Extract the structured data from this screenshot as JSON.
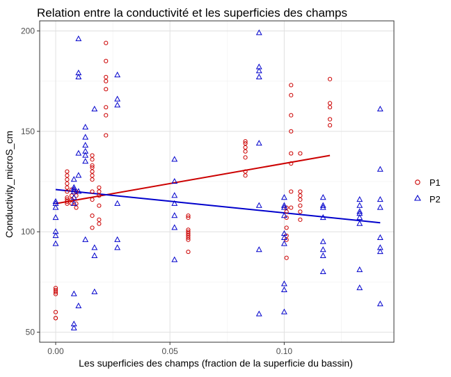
{
  "chart_data": {
    "type": "scatter",
    "title": "Relation entre la conductivité et les superficies des champs",
    "xlabel": "Les superficies des champs (fraction de la superficie du bassin)",
    "ylabel": "Conductivity_microS_cm",
    "xlim": [
      -0.007,
      0.148
    ],
    "ylim": [
      45,
      205
    ],
    "x_ticks": [
      0.0,
      0.05,
      0.1
    ],
    "x_tick_labels": [
      "0.00",
      "0.05",
      "0.10"
    ],
    "y_ticks": [
      50,
      100,
      150,
      200
    ],
    "y_tick_labels": [
      "50",
      "100",
      "150",
      "200"
    ],
    "grid": true,
    "legend_position": "right",
    "series": [
      {
        "name": "P1",
        "marker": "circle",
        "color": "#cc0000",
        "points": [
          [
            0.0,
            57
          ],
          [
            0.0,
            60
          ],
          [
            0.0,
            57
          ],
          [
            0.0,
            69
          ],
          [
            0.0,
            70
          ],
          [
            0.0,
            71
          ],
          [
            0.0,
            72
          ],
          [
            0.005,
            114
          ],
          [
            0.005,
            115
          ],
          [
            0.005,
            116
          ],
          [
            0.005,
            117
          ],
          [
            0.005,
            120
          ],
          [
            0.005,
            122
          ],
          [
            0.005,
            124
          ],
          [
            0.005,
            126
          ],
          [
            0.005,
            128
          ],
          [
            0.005,
            130
          ],
          [
            0.007,
            114
          ],
          [
            0.007,
            116
          ],
          [
            0.007,
            118
          ],
          [
            0.007,
            121
          ],
          [
            0.009,
            112
          ],
          [
            0.009,
            114
          ],
          [
            0.009,
            118
          ],
          [
            0.009,
            120
          ],
          [
            0.016,
            102
          ],
          [
            0.016,
            108
          ],
          [
            0.016,
            116
          ],
          [
            0.016,
            120
          ],
          [
            0.016,
            126
          ],
          [
            0.016,
            128
          ],
          [
            0.016,
            130
          ],
          [
            0.016,
            132
          ],
          [
            0.016,
            133
          ],
          [
            0.016,
            136
          ],
          [
            0.016,
            138
          ],
          [
            0.019,
            104
          ],
          [
            0.019,
            106
          ],
          [
            0.019,
            113
          ],
          [
            0.019,
            118
          ],
          [
            0.019,
            120
          ],
          [
            0.019,
            122
          ],
          [
            0.022,
            148
          ],
          [
            0.022,
            158
          ],
          [
            0.022,
            162
          ],
          [
            0.022,
            171
          ],
          [
            0.022,
            175
          ],
          [
            0.022,
            177
          ],
          [
            0.022,
            185
          ],
          [
            0.022,
            194
          ],
          [
            0.058,
            90
          ],
          [
            0.058,
            96
          ],
          [
            0.058,
            97
          ],
          [
            0.058,
            98
          ],
          [
            0.058,
            99
          ],
          [
            0.058,
            100
          ],
          [
            0.058,
            101
          ],
          [
            0.058,
            107
          ],
          [
            0.058,
            108
          ],
          [
            0.083,
            128
          ],
          [
            0.083,
            130
          ],
          [
            0.083,
            137
          ],
          [
            0.083,
            140
          ],
          [
            0.083,
            142
          ],
          [
            0.083,
            144
          ],
          [
            0.083,
            145
          ],
          [
            0.101,
            87
          ],
          [
            0.101,
            96
          ],
          [
            0.101,
            98
          ],
          [
            0.101,
            102
          ],
          [
            0.101,
            107
          ],
          [
            0.101,
            110
          ],
          [
            0.101,
            112
          ],
          [
            0.103,
            112
          ],
          [
            0.103,
            120
          ],
          [
            0.103,
            134
          ],
          [
            0.103,
            139
          ],
          [
            0.103,
            150
          ],
          [
            0.103,
            158
          ],
          [
            0.103,
            168
          ],
          [
            0.103,
            173
          ],
          [
            0.107,
            106
          ],
          [
            0.107,
            110
          ],
          [
            0.107,
            113
          ],
          [
            0.107,
            116
          ],
          [
            0.107,
            118
          ],
          [
            0.107,
            120
          ],
          [
            0.107,
            139
          ],
          [
            0.12,
            153
          ],
          [
            0.12,
            156
          ],
          [
            0.12,
            162
          ],
          [
            0.12,
            164
          ],
          [
            0.12,
            176
          ]
        ],
        "trend_line": [
          [
            0.0,
            114.0
          ],
          [
            0.12,
            138.0
          ]
        ]
      },
      {
        "name": "P2",
        "marker": "triangle",
        "color": "#0000cc",
        "points": [
          [
            0.0,
            94
          ],
          [
            0.0,
            98
          ],
          [
            0.0,
            100
          ],
          [
            0.0,
            107
          ],
          [
            0.0,
            112
          ],
          [
            0.0,
            114
          ],
          [
            0.0,
            115
          ],
          [
            0.008,
            52
          ],
          [
            0.008,
            54
          ],
          [
            0.008,
            69
          ],
          [
            0.008,
            114
          ],
          [
            0.008,
            117
          ],
          [
            0.008,
            120
          ],
          [
            0.008,
            121
          ],
          [
            0.008,
            122
          ],
          [
            0.008,
            126
          ],
          [
            0.01,
            63
          ],
          [
            0.01,
            120
          ],
          [
            0.01,
            128
          ],
          [
            0.01,
            139
          ],
          [
            0.01,
            177
          ],
          [
            0.01,
            179
          ],
          [
            0.01,
            196
          ],
          [
            0.013,
            96
          ],
          [
            0.013,
            135
          ],
          [
            0.013,
            138
          ],
          [
            0.013,
            140
          ],
          [
            0.013,
            143
          ],
          [
            0.013,
            147
          ],
          [
            0.013,
            152
          ],
          [
            0.017,
            70
          ],
          [
            0.017,
            88
          ],
          [
            0.017,
            92
          ],
          [
            0.017,
            161
          ],
          [
            0.027,
            92
          ],
          [
            0.027,
            96
          ],
          [
            0.027,
            114
          ],
          [
            0.027,
            163
          ],
          [
            0.027,
            166
          ],
          [
            0.027,
            178
          ],
          [
            0.052,
            86
          ],
          [
            0.052,
            102
          ],
          [
            0.052,
            108
          ],
          [
            0.052,
            114
          ],
          [
            0.052,
            118
          ],
          [
            0.052,
            125
          ],
          [
            0.052,
            136
          ],
          [
            0.089,
            59
          ],
          [
            0.089,
            91
          ],
          [
            0.089,
            113
          ],
          [
            0.089,
            144
          ],
          [
            0.089,
            177
          ],
          [
            0.089,
            180
          ],
          [
            0.089,
            182
          ],
          [
            0.089,
            199
          ],
          [
            0.1,
            60
          ],
          [
            0.1,
            71
          ],
          [
            0.1,
            74
          ],
          [
            0.1,
            94
          ],
          [
            0.1,
            97
          ],
          [
            0.1,
            99
          ],
          [
            0.1,
            108
          ],
          [
            0.1,
            112
          ],
          [
            0.1,
            113
          ],
          [
            0.1,
            117
          ],
          [
            0.117,
            80
          ],
          [
            0.117,
            88
          ],
          [
            0.117,
            91
          ],
          [
            0.117,
            95
          ],
          [
            0.117,
            107
          ],
          [
            0.117,
            112
          ],
          [
            0.117,
            113
          ],
          [
            0.117,
            117
          ],
          [
            0.133,
            72
          ],
          [
            0.133,
            81
          ],
          [
            0.133,
            104
          ],
          [
            0.133,
            107
          ],
          [
            0.133,
            109
          ],
          [
            0.133,
            110
          ],
          [
            0.133,
            113
          ],
          [
            0.133,
            116
          ],
          [
            0.142,
            64
          ],
          [
            0.142,
            90
          ],
          [
            0.142,
            92
          ],
          [
            0.142,
            97
          ],
          [
            0.142,
            112
          ],
          [
            0.142,
            116
          ],
          [
            0.142,
            131
          ],
          [
            0.142,
            161
          ]
        ],
        "trend_line": [
          [
            0.0,
            121.0
          ],
          [
            0.142,
            104.5
          ]
        ]
      }
    ]
  }
}
